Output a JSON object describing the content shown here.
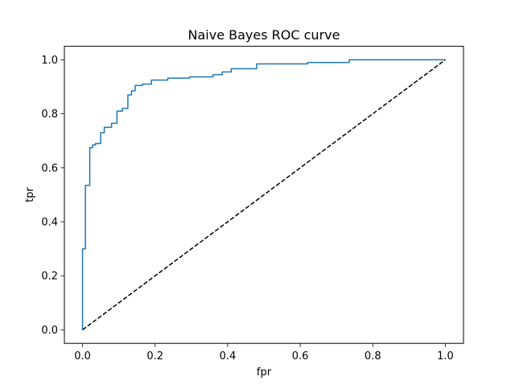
{
  "chart_data": {
    "type": "line",
    "title": "Naive Bayes ROC curve",
    "xlabel": "fpr",
    "ylabel": "tpr",
    "xlim": [
      -0.05,
      1.05
    ],
    "ylim": [
      -0.05,
      1.05
    ],
    "xticks": [
      0.0,
      0.2,
      0.4,
      0.6,
      0.8,
      1.0
    ],
    "yticks": [
      0.0,
      0.2,
      0.4,
      0.6,
      0.8,
      1.0
    ],
    "xtick_labels": [
      "0.0",
      "0.2",
      "0.4",
      "0.6",
      "0.8",
      "1.0"
    ],
    "ytick_labels": [
      "0.0",
      "0.2",
      "0.4",
      "0.6",
      "0.8",
      "1.0"
    ],
    "grid": false,
    "legend": "none",
    "series": [
      {
        "style": "solid",
        "color": "#1f77b4",
        "x": [
          0.0,
          0.0,
          0.008,
          0.008,
          0.02,
          0.02,
          0.028,
          0.028,
          0.036,
          0.036,
          0.05,
          0.05,
          0.06,
          0.06,
          0.08,
          0.08,
          0.095,
          0.095,
          0.11,
          0.11,
          0.125,
          0.125,
          0.135,
          0.135,
          0.145,
          0.145,
          0.165,
          0.165,
          0.19,
          0.19,
          0.235,
          0.235,
          0.295,
          0.295,
          0.36,
          0.36,
          0.385,
          0.385,
          0.41,
          0.41,
          0.48,
          0.48,
          0.62,
          0.62,
          0.735,
          0.735,
          1.0
        ],
        "y": [
          0.0,
          0.3,
          0.3,
          0.535,
          0.535,
          0.675,
          0.675,
          0.685,
          0.685,
          0.69,
          0.69,
          0.73,
          0.73,
          0.75,
          0.75,
          0.765,
          0.765,
          0.81,
          0.81,
          0.82,
          0.82,
          0.87,
          0.87,
          0.885,
          0.885,
          0.905,
          0.905,
          0.91,
          0.91,
          0.925,
          0.925,
          0.932,
          0.932,
          0.937,
          0.937,
          0.945,
          0.945,
          0.955,
          0.955,
          0.967,
          0.967,
          0.985,
          0.985,
          0.99,
          0.99,
          1.0,
          1.0
        ]
      },
      {
        "style": "dashed",
        "color": "#000000",
        "x": [
          0.0,
          1.0
        ],
        "y": [
          0.0,
          1.0
        ]
      }
    ]
  }
}
